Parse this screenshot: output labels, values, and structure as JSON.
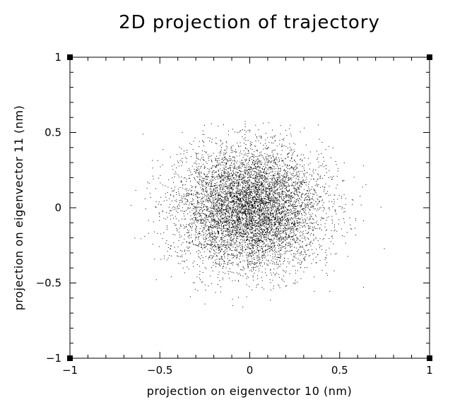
{
  "chart_data": {
    "type": "scatter",
    "title": "2D projection of trajectory",
    "xlabel": "projection on eigenvector 10 (nm)",
    "ylabel": "projection on eigenvector 11 (nm)",
    "xlim": [
      -1,
      1
    ],
    "ylim": [
      -1,
      1
    ],
    "xticks": [
      -1,
      -0.5,
      0,
      0.5,
      1
    ],
    "yticks": [
      -1,
      -0.5,
      0,
      0.5,
      1
    ],
    "xtick_labels": [
      "−1",
      "−0.5",
      "0",
      "0.5",
      "1"
    ],
    "ytick_labels": [
      "−1",
      "−0.5",
      "0",
      "0.5",
      "1"
    ],
    "grid": false,
    "marker_color": "#000000",
    "series": [
      {
        "distribution": "dense cloud centred near (0, 0), standard deviation about 0.2 nm in each direction, several thousand points",
        "center": [
          0.0,
          0.0
        ],
        "spread_x": 0.2,
        "spread_y": 0.2,
        "x_range": [
          -0.72,
          0.8
        ],
        "y_range": [
          -0.66,
          0.58
        ]
      }
    ]
  }
}
